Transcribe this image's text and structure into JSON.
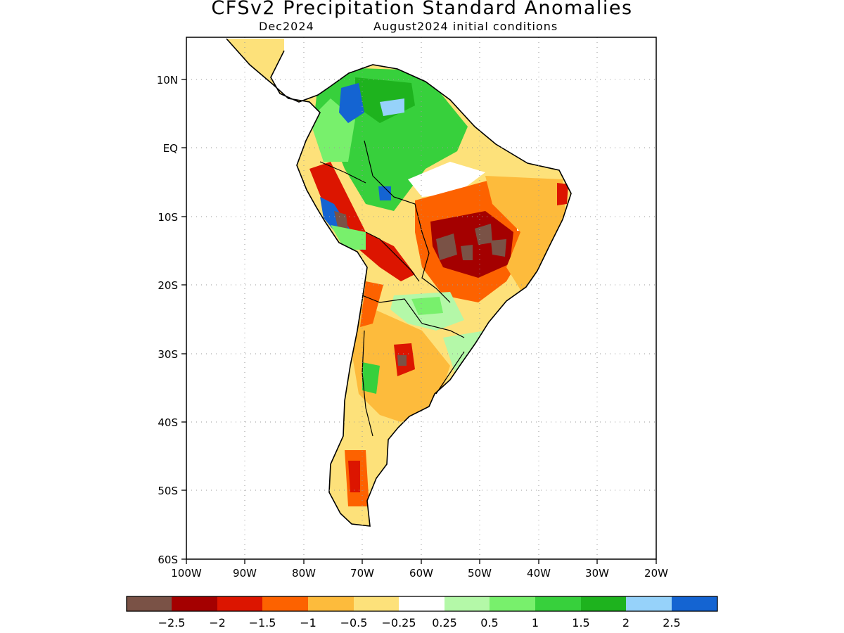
{
  "title": "CFSv2 Precipitation Standard Anomalies",
  "subtitle_left": "Dec2024",
  "subtitle_right": "August2024 initial conditions",
  "map": {
    "lat_labels": [
      "10N",
      "EQ",
      "10S",
      "20S",
      "30S",
      "40S",
      "50S",
      "60S"
    ],
    "lon_labels": [
      "100W",
      "90W",
      "80W",
      "70W",
      "60W",
      "50W",
      "40W",
      "30W",
      "20W"
    ]
  },
  "colorbar": {
    "colors": [
      "#7a5246",
      "#a40000",
      "#dc1500",
      "#fd6200",
      "#fdbb3c",
      "#fde17a",
      "#ffffff",
      "#b4f8a8",
      "#78f06c",
      "#37d03c",
      "#1eb31e",
      "#96d2fa",
      "#1464d2"
    ],
    "labels": [
      "-2.5",
      "-2",
      "-1.5",
      "-1",
      "-0.5",
      "-0.25",
      "0.25",
      "0.5",
      "1",
      "1.5",
      "2",
      "2.5"
    ]
  },
  "colors": {
    "brown": "#7a5246",
    "darkred": "#a40000",
    "red": "#dc1500",
    "orange": "#fd6200",
    "lightorange": "#fdbb3c",
    "yellow": "#fde17a",
    "white": "#ffffff",
    "palegreen": "#b4f8a8",
    "lightgreen": "#78f06c",
    "green": "#37d03c",
    "darkgreen": "#1eb31e",
    "lightblue": "#96d2fa",
    "blue": "#1464d2"
  }
}
